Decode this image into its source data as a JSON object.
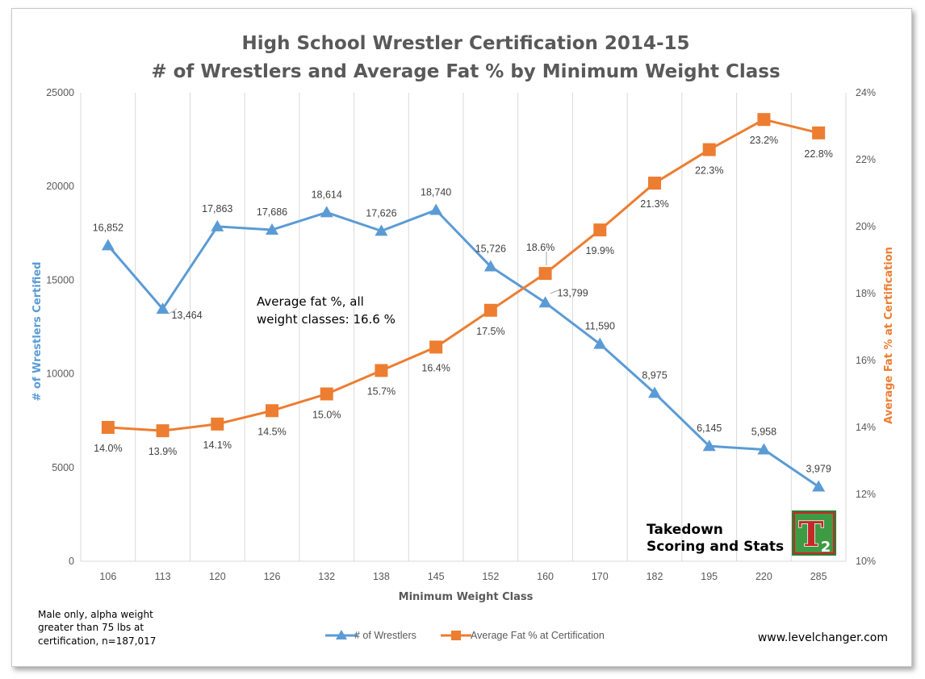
{
  "chart_data": {
    "type": "line",
    "title": "High School Wrestler Certification 2014-15",
    "subtitle": "# of Wrestlers and Average Fat % by Minimum Weight Class",
    "xlabel": "Minimum Weight Class",
    "ylabel": "# of Wrestlers Certified",
    "ylabel_right": "Average Fat % at Certification",
    "categories": [
      "106",
      "113",
      "120",
      "126",
      "132",
      "138",
      "145",
      "152",
      "160",
      "170",
      "182",
      "195",
      "220",
      "285"
    ],
    "ylim": [
      0,
      25000
    ],
    "ylim_right": [
      10,
      24
    ],
    "y_ticks": [
      "0",
      "5000",
      "10000",
      "15000",
      "20000",
      "25000"
    ],
    "y_ticks_right": [
      "10%",
      "12%",
      "14%",
      "16%",
      "18%",
      "20%",
      "22%",
      "24%"
    ],
    "grid": "vertical",
    "legend_position": "bottom",
    "series": [
      {
        "name": "# of Wrestlers",
        "axis": "left",
        "color": "#5b9bd5",
        "marker": "triangle",
        "values": [
          16852,
          13464,
          17863,
          17686,
          18614,
          17626,
          18740,
          15726,
          13799,
          11590,
          8975,
          6145,
          5958,
          3979
        ],
        "labels": [
          "16,852",
          "13,464",
          "17,863",
          "17,686",
          "18,614",
          "17,626",
          "18,740",
          "15,726",
          "13,799",
          "11,590",
          "8,975",
          "6,145",
          "5,958",
          "3,979"
        ]
      },
      {
        "name": "Average Fat % at Certification",
        "axis": "right",
        "color": "#ed7d31",
        "marker": "square",
        "values": [
          14.0,
          13.9,
          14.1,
          14.5,
          15.0,
          15.7,
          16.4,
          17.5,
          18.6,
          19.9,
          21.3,
          22.3,
          23.2,
          22.8
        ],
        "labels": [
          "14.0%",
          "13.9%",
          "14.1%",
          "14.5%",
          "15.0%",
          "15.7%",
          "16.4%",
          "17.5%",
          "18.6%",
          "19.9%",
          "21.3%",
          "22.3%",
          "23.2%",
          "22.8%"
        ]
      }
    ],
    "annotation": [
      "Average fat %, all",
      "weight classes: 16.6 %"
    ],
    "footnote": [
      "Male only, alpha weight",
      "greater than 75 lbs at",
      "certification, n=187,017"
    ],
    "brand": [
      "Takedown",
      "Scoring and Stats"
    ],
    "logo_text": "T",
    "logo_subscript": "2",
    "website": "www.levelchanger.com"
  }
}
